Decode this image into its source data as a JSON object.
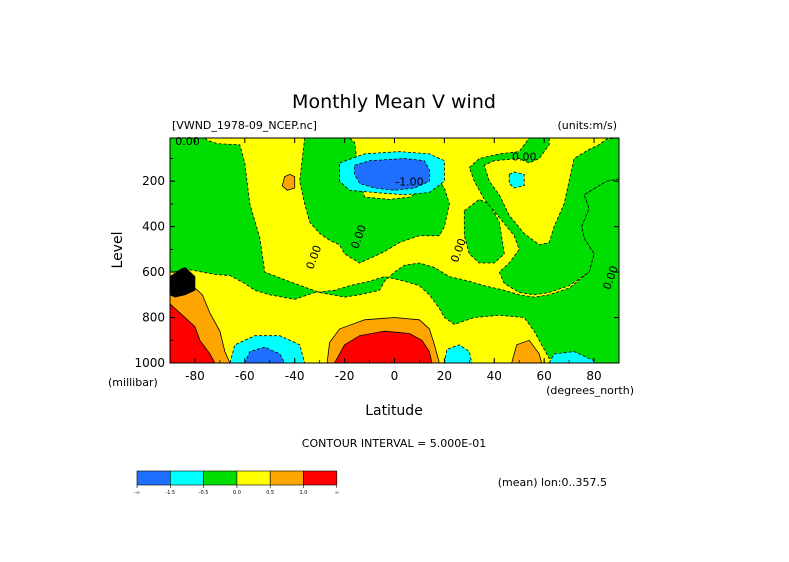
{
  "chart_data": {
    "type": "contour",
    "title": "Monthly Mean V wind",
    "source_label": "[VWND_1978-09_NCEP.nc]",
    "units_label": "(units:m/s)",
    "xlabel": "Latitude",
    "x_unit": "(degrees_north)",
    "ylabel": "Level",
    "y_unit": "(millibar)",
    "xlim": [
      -90,
      90
    ],
    "ylim": [
      1000,
      10
    ],
    "y_inverted": true,
    "x_ticks": [
      -80,
      -60,
      -40,
      -20,
      0,
      20,
      40,
      60,
      80
    ],
    "x_tick_labels": [
      "-80",
      "-60",
      "-40",
      "-20",
      "0",
      "20",
      "40",
      "60",
      "80"
    ],
    "y_ticks": [
      200,
      400,
      600,
      800,
      1000
    ],
    "y_tick_labels": [
      "200",
      "400",
      "600",
      "800",
      "1000"
    ],
    "contour_interval_text": "CONTOUR INTERVAL = 5.000E-01",
    "mean_text": "(mean) lon:0..357.5",
    "colorbar": {
      "colors": [
        "#1f6fff",
        "#00ffff",
        "#00dd00",
        "#ffff00",
        "#ffa500",
        "#ff0000"
      ],
      "labels": [
        "-∞",
        "-1.5",
        "-0.5",
        "0.0",
        "0.5",
        "1.0",
        "∞"
      ]
    },
    "contour_labels": [
      {
        "text": "0.00",
        "lat": -83,
        "p": 40
      },
      {
        "text": "-1.00",
        "lat": 6,
        "p": 220
      },
      {
        "text": "0.00",
        "lat": 52,
        "p": 110
      },
      {
        "text": "0.00",
        "lat": -31,
        "p": 540
      },
      {
        "text": "0.00",
        "lat": -13,
        "p": 450
      },
      {
        "text": "0.00",
        "lat": 27,
        "p": 510
      },
      {
        "text": "0.00",
        "lat": 88,
        "p": 630
      }
    ],
    "regions": [
      {
        "value": 0.25,
        "color": "#ffff00",
        "polys": [
          [
            [
              -90,
              10
            ],
            [
              90,
              10
            ],
            [
              90,
              1000
            ],
            [
              -90,
              1000
            ]
          ]
        ]
      },
      {
        "value": -0.25,
        "color": "#00dd00",
        "polys": [
          [
            [
              -90,
              10
            ],
            [
              -76,
              10
            ],
            [
              -75,
              20
            ],
            [
              -71,
              35
            ],
            [
              -62,
              40
            ],
            [
              -60,
              120
            ],
            [
              -58,
              300
            ],
            [
              -54,
              450
            ],
            [
              -52,
              600
            ],
            [
              -40,
              650
            ],
            [
              -30,
              690
            ],
            [
              -20,
              710
            ],
            [
              -14,
              700
            ],
            [
              -6,
              680
            ],
            [
              -4,
              640
            ],
            [
              0,
              600
            ],
            [
              4,
              570
            ],
            [
              10,
              560
            ],
            [
              16,
              580
            ],
            [
              22,
              620
            ],
            [
              30,
              640
            ],
            [
              36,
              660
            ],
            [
              44,
              680
            ],
            [
              50,
              700
            ],
            [
              56,
              710
            ],
            [
              62,
              700
            ],
            [
              70,
              670
            ],
            [
              78,
              600
            ],
            [
              80,
              520
            ],
            [
              76,
              450
            ],
            [
              75,
              400
            ],
            [
              78,
              320
            ],
            [
              76,
              260
            ],
            [
              82,
              220
            ],
            [
              85,
              200
            ],
            [
              90,
              190
            ],
            [
              90,
              1000
            ],
            [
              72,
              1000
            ],
            [
              62,
              980
            ],
            [
              56,
              860
            ],
            [
              52,
              800
            ],
            [
              42,
              790
            ],
            [
              32,
              800
            ],
            [
              24,
              830
            ],
            [
              20,
              800
            ],
            [
              18,
              760
            ],
            [
              14,
              700
            ],
            [
              10,
              660
            ],
            [
              4,
              640
            ],
            [
              -4,
              620
            ],
            [
              -10,
              640
            ],
            [
              -18,
              660
            ],
            [
              -24,
              680
            ],
            [
              -32,
              690
            ],
            [
              -40,
              720
            ],
            [
              -50,
              700
            ],
            [
              -56,
              680
            ],
            [
              -60,
              650
            ],
            [
              -66,
              615
            ],
            [
              -72,
              610
            ],
            [
              -82,
              590
            ],
            [
              -90,
              600
            ]
          ],
          [
            [
              -36,
              10
            ],
            [
              -18,
              10
            ],
            [
              -16,
              30
            ],
            [
              -14,
              200
            ],
            [
              -12,
              270
            ],
            [
              -2,
              280
            ],
            [
              6,
              270
            ],
            [
              14,
              220
            ],
            [
              18,
              200
            ],
            [
              20,
              230
            ],
            [
              22,
              300
            ],
            [
              20,
              400
            ],
            [
              18,
              440
            ],
            [
              10,
              440
            ],
            [
              2,
              470
            ],
            [
              -4,
              510
            ],
            [
              -10,
              540
            ],
            [
              -14,
              560
            ],
            [
              -20,
              520
            ],
            [
              -22,
              480
            ],
            [
              -26,
              460
            ],
            [
              -30,
              430
            ],
            [
              -34,
              380
            ],
            [
              -36,
              300
            ],
            [
              -38,
              200
            ]
          ],
          [
            [
              28,
              330
            ],
            [
              34,
              280
            ],
            [
              38,
              300
            ],
            [
              42,
              380
            ],
            [
              44,
              520
            ],
            [
              40,
              560
            ],
            [
              34,
              560
            ],
            [
              30,
              520
            ],
            [
              28,
              440
            ]
          ],
          [
            [
              54,
              10
            ],
            [
              62,
              10
            ],
            [
              62,
              40
            ],
            [
              58,
              100
            ],
            [
              54,
              120
            ],
            [
              50,
              100
            ],
            [
              40,
              110
            ],
            [
              36,
              130
            ],
            [
              38,
              200
            ],
            [
              42,
              260
            ],
            [
              46,
              350
            ],
            [
              52,
              430
            ],
            [
              58,
              480
            ],
            [
              62,
              470
            ],
            [
              64,
              400
            ],
            [
              68,
              300
            ],
            [
              70,
              200
            ],
            [
              72,
              100
            ],
            [
              78,
              60
            ],
            [
              82,
              40
            ],
            [
              85,
              15
            ],
            [
              90,
              10
            ],
            [
              90,
              190
            ],
            [
              85,
              200
            ],
            [
              82,
              220
            ],
            [
              76,
              260
            ],
            [
              78,
              320
            ],
            [
              75,
              400
            ],
            [
              76,
              450
            ],
            [
              80,
              520
            ],
            [
              78,
              600
            ],
            [
              70,
              660
            ],
            [
              62,
              690
            ],
            [
              56,
              700
            ],
            [
              50,
              690
            ],
            [
              44,
              650
            ],
            [
              42,
              600
            ],
            [
              46,
              560
            ],
            [
              50,
              500
            ],
            [
              48,
              440
            ],
            [
              42,
              360
            ],
            [
              36,
              280
            ],
            [
              32,
              200
            ],
            [
              30,
              140
            ],
            [
              34,
              100
            ],
            [
              42,
              80
            ],
            [
              50,
              70
            ]
          ]
        ]
      },
      {
        "value": 0.75,
        "color": "#ffa500",
        "polys": [
          [
            [
              -90,
              680
            ],
            [
              -82,
              650
            ],
            [
              -77,
              700
            ],
            [
              -74,
              780
            ],
            [
              -70,
              860
            ],
            [
              -68,
              950
            ],
            [
              -66,
              1000
            ],
            [
              -90,
              1000
            ]
          ],
          [
            [
              -27,
              1000
            ],
            [
              -26,
              910
            ],
            [
              -22,
              850
            ],
            [
              -12,
              810
            ],
            [
              0,
              800
            ],
            [
              10,
              810
            ],
            [
              14,
              850
            ],
            [
              16,
              920
            ],
            [
              18,
              1000
            ]
          ],
          [
            [
              47,
              1000
            ],
            [
              49,
              920
            ],
            [
              54,
              900
            ],
            [
              58,
              960
            ],
            [
              59,
              1000
            ]
          ],
          [
            [
              -44,
              180
            ],
            [
              -42,
              170
            ],
            [
              -40,
              180
            ],
            [
              -40,
              230
            ],
            [
              -43,
              240
            ],
            [
              -45,
              220
            ]
          ]
        ]
      },
      {
        "value": 1.25,
        "color": "#ff0000",
        "polys": [
          [
            [
              -90,
              740
            ],
            [
              -85,
              790
            ],
            [
              -80,
              840
            ],
            [
              -78,
              900
            ],
            [
              -74,
              960
            ],
            [
              -72,
              1000
            ],
            [
              -90,
              1000
            ]
          ],
          [
            [
              -24,
              1000
            ],
            [
              -20,
              920
            ],
            [
              -14,
              880
            ],
            [
              -4,
              860
            ],
            [
              6,
              870
            ],
            [
              11,
              900
            ],
            [
              14,
              950
            ],
            [
              15,
              1000
            ]
          ]
        ]
      },
      {
        "value": -0.75,
        "color": "#00ffff",
        "polys": [
          [
            [
              -22,
              120
            ],
            [
              -12,
              80
            ],
            [
              2,
              70
            ],
            [
              14,
              80
            ],
            [
              20,
              110
            ],
            [
              20,
              200
            ],
            [
              14,
              250
            ],
            [
              4,
              260
            ],
            [
              -8,
              250
            ],
            [
              -18,
              240
            ],
            [
              -22,
              200
            ]
          ],
          [
            [
              -66,
              1000
            ],
            [
              -64,
              920
            ],
            [
              -56,
              880
            ],
            [
              -46,
              880
            ],
            [
              -38,
              920
            ],
            [
              -36,
              1000
            ]
          ],
          [
            [
              20,
              1000
            ],
            [
              21,
              940
            ],
            [
              26,
              920
            ],
            [
              30,
              950
            ],
            [
              31,
              1000
            ]
          ],
          [
            [
              62,
              1000
            ],
            [
              64,
              960
            ],
            [
              72,
              950
            ],
            [
              80,
              990
            ],
            [
              81,
              1000
            ]
          ],
          [
            [
              46,
              170
            ],
            [
              48,
              160
            ],
            [
              52,
              170
            ],
            [
              52,
              220
            ],
            [
              48,
              230
            ],
            [
              46,
              210
            ]
          ]
        ]
      },
      {
        "value": -1.25,
        "color": "#1f6fff",
        "polys": [
          [
            [
              -16,
              130
            ],
            [
              -10,
              110
            ],
            [
              4,
              100
            ],
            [
              12,
              110
            ],
            [
              14,
              150
            ],
            [
              14,
              200
            ],
            [
              8,
              230
            ],
            [
              0,
              240
            ],
            [
              -8,
              230
            ],
            [
              -14,
              210
            ],
            [
              -16,
              170
            ]
          ],
          [
            [
              -60,
              1000
            ],
            [
              -58,
              950
            ],
            [
              -52,
              930
            ],
            [
              -46,
              960
            ],
            [
              -44,
              1000
            ]
          ]
        ]
      },
      {
        "value": -1.75,
        "color": "#000000",
        "polys": [
          [
            [
              -86,
              590
            ],
            [
              -84,
              580
            ],
            [
              -82,
              600
            ],
            [
              -80,
              620
            ],
            [
              -80,
              680
            ],
            [
              -84,
              700
            ],
            [
              -88,
              710
            ],
            [
              -90,
              700
            ],
            [
              -90,
              620
            ]
          ]
        ]
      }
    ]
  }
}
